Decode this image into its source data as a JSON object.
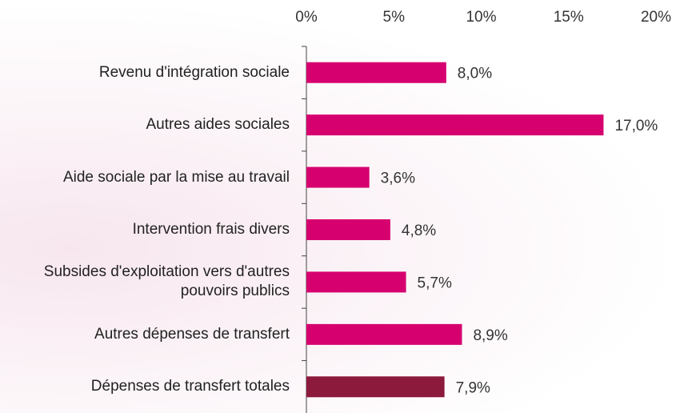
{
  "chart_data": {
    "type": "bar",
    "orientation": "horizontal",
    "categories": [
      "Revenu d'intégration sociale",
      "Autres aides sociales",
      "Aide sociale par la mise au travail",
      "Intervention frais divers",
      "Subsides d'exploitation vers d'autres pouvoirs publics",
      "Autres dépenses de transfert",
      "Dépenses de transfert totales"
    ],
    "values": [
      8.0,
      17.0,
      3.6,
      4.8,
      5.7,
      8.9,
      7.9
    ],
    "value_labels": [
      "8,0%",
      "17,0%",
      "3,6%",
      "4,8%",
      "5,7%",
      "8,9%",
      "7,9%"
    ],
    "colors": [
      "#d6006f",
      "#d6006f",
      "#d6006f",
      "#d6006f",
      "#d6006f",
      "#d6006f",
      "#8c1a3c"
    ],
    "value_label_colors": [
      "#333333",
      "#c8005f",
      "#333333",
      "#333333",
      "#333333",
      "#333333",
      "#333333"
    ],
    "xlim": [
      0,
      20
    ],
    "xticks": [
      {
        "value": 0,
        "label": "0%"
      },
      {
        "value": 5,
        "label": "5%"
      },
      {
        "value": 10,
        "label": "10%"
      },
      {
        "value": 15,
        "label": "15%"
      },
      {
        "value": 20,
        "label": "20%"
      }
    ],
    "grid": false
  }
}
